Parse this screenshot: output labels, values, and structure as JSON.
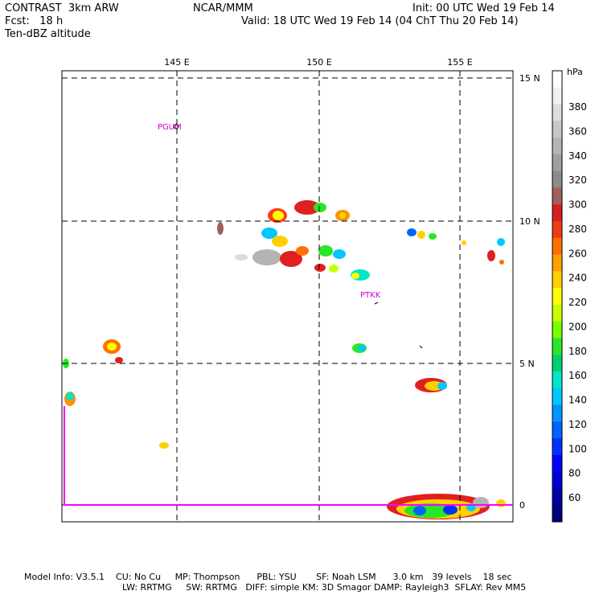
{
  "header": {
    "model": "CONTRAST  3km ARW",
    "org": "NCAR/MMM",
    "init": "Init: 00 UTC Wed 19 Feb 14",
    "fcst": "Fcst:   18 h",
    "valid": "Valid: 18 UTC Wed 19 Feb 14 (04 ChT Thu 20 Feb 14)",
    "field": "Ten-dBZ altitude"
  },
  "map": {
    "lon_labels": [
      "145 E",
      "150 E",
      "155 E"
    ],
    "lat_labels": [
      "15 N",
      "10 N",
      "5 N",
      "0"
    ],
    "stations": [
      "PGUM",
      "PTKK"
    ]
  },
  "colorbar": {
    "unit": "hPa",
    "labels": [
      "380",
      "360",
      "340",
      "320",
      "300",
      "280",
      "260",
      "240",
      "220",
      "200",
      "180",
      "160",
      "140",
      "120",
      "100",
      "80",
      "60"
    ],
    "colors": [
      "#ffffff",
      "#f0f0f0",
      "#dcdcdc",
      "#c8c8c8",
      "#b4b4b4",
      "#a0a0a0",
      "#8c8c8c",
      "#a06060",
      "#d22020",
      "#f03c14",
      "#ff7000",
      "#ffa000",
      "#ffd000",
      "#ffff00",
      "#c8ff00",
      "#78ff00",
      "#28e628",
      "#00d070",
      "#00e6c8",
      "#00c8ff",
      "#0096ff",
      "#0064ff",
      "#0032ff",
      "#0000ff",
      "#0000d2",
      "#0000a0",
      "#000078"
    ]
  },
  "footer": {
    "line1": "Model Info: V3.5.1    CU: No Cu     MP: Thompson      PBL: YSU       SF: Noah LSM      3.0 km   39 levels    18 sec",
    "line2": "LW: RRTMG     SW: RRTMG   DIFF: simple KM: 3D Smagor DAMP: Rayleigh3  SFLAY: Rev MM5"
  }
}
